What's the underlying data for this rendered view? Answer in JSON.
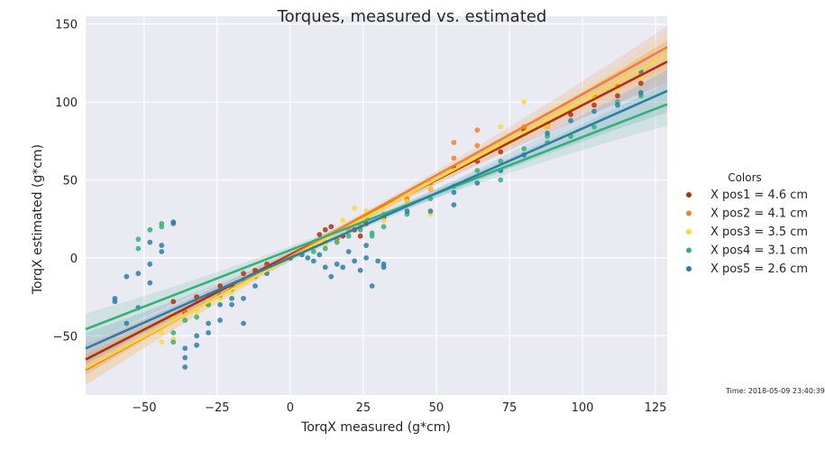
{
  "chart_data": {
    "type": "scatter",
    "title": "Torques, measured vs. estimated",
    "xlabel": "TorqX measured (g*cm)",
    "ylabel": "TorqX estimated (g*cm)",
    "xlim": [
      -70,
      129
    ],
    "ylim": [
      -88,
      155
    ],
    "xticks": [
      -50,
      -25,
      0,
      25,
      50,
      75,
      100,
      125
    ],
    "yticks": [
      -50,
      0,
      50,
      100,
      150
    ],
    "xtick_labels": [
      "−50",
      "−25",
      "0",
      "25",
      "50",
      "75",
      "100",
      "125"
    ],
    "ytick_labels": [
      "−50",
      "0",
      "50",
      "100",
      "150"
    ],
    "grid": true,
    "legend": {
      "title": "Colors",
      "placement": "right"
    },
    "timestamp": "Time: 2018-05-09 23:40:39",
    "series": [
      {
        "name": "X pos1 = 4.6 cm",
        "color": "#b3300c",
        "fit": {
          "slope": 0.96,
          "intercept": 2
        },
        "points": [
          [
            -40,
            -28
          ],
          [
            -36,
            -35
          ],
          [
            -32,
            -25
          ],
          [
            -28,
            -24
          ],
          [
            -24,
            -18
          ],
          [
            -20,
            -18
          ],
          [
            -16,
            -10
          ],
          [
            -12,
            -8
          ],
          [
            -8,
            -4
          ],
          [
            0,
            0
          ],
          [
            8,
            8
          ],
          [
            10,
            15
          ],
          [
            12,
            18
          ],
          [
            14,
            20
          ],
          [
            16,
            12
          ],
          [
            18,
            14
          ],
          [
            22,
            18
          ],
          [
            24,
            14
          ],
          [
            26,
            22
          ],
          [
            32,
            26
          ],
          [
            40,
            36
          ],
          [
            48,
            44
          ],
          [
            56,
            58
          ],
          [
            64,
            62
          ],
          [
            72,
            68
          ],
          [
            80,
            82
          ],
          [
            88,
            84
          ],
          [
            96,
            92
          ],
          [
            104,
            98
          ],
          [
            112,
            104
          ],
          [
            120,
            112
          ]
        ]
      },
      {
        "name": "X pos2 = 4.1 cm",
        "color": "#f0822a",
        "fit": {
          "slope": 1.04,
          "intercept": 1
        },
        "points": [
          [
            -40,
            -38
          ],
          [
            -36,
            -34
          ],
          [
            -32,
            -28
          ],
          [
            -28,
            -30
          ],
          [
            -24,
            -24
          ],
          [
            -20,
            -20
          ],
          [
            -16,
            -14
          ],
          [
            -12,
            -12
          ],
          [
            -8,
            -6
          ],
          [
            0,
            0
          ],
          [
            8,
            6
          ],
          [
            12,
            10
          ],
          [
            16,
            12
          ],
          [
            20,
            18
          ],
          [
            24,
            20
          ],
          [
            26,
            26
          ],
          [
            32,
            28
          ],
          [
            40,
            38
          ],
          [
            48,
            48
          ],
          [
            56,
            64
          ],
          [
            56,
            74
          ],
          [
            64,
            72
          ],
          [
            64,
            82
          ],
          [
            72,
            72
          ],
          [
            80,
            84
          ],
          [
            88,
            86
          ],
          [
            96,
            96
          ],
          [
            104,
            104
          ],
          [
            112,
            110
          ],
          [
            120,
            118
          ]
        ]
      },
      {
        "name": "X pos3 = 3.5 cm",
        "color": "#f9d93a",
        "fit": {
          "slope": 1.01,
          "intercept": 0
        },
        "points": [
          [
            -44,
            -54
          ],
          [
            -44,
            -48
          ],
          [
            -40,
            -52
          ],
          [
            -40,
            -38
          ],
          [
            -36,
            -40
          ],
          [
            -32,
            -34
          ],
          [
            -28,
            -28
          ],
          [
            -24,
            -26
          ],
          [
            -20,
            -22
          ],
          [
            -16,
            -16
          ],
          [
            -12,
            -12
          ],
          [
            0,
            0
          ],
          [
            8,
            6
          ],
          [
            12,
            8
          ],
          [
            16,
            10
          ],
          [
            18,
            24
          ],
          [
            22,
            32
          ],
          [
            26,
            30
          ],
          [
            32,
            24
          ],
          [
            40,
            36
          ],
          [
            48,
            28
          ],
          [
            48,
            44
          ],
          [
            56,
            56
          ],
          [
            64,
            64
          ],
          [
            72,
            84
          ],
          [
            80,
            100
          ],
          [
            88,
            84
          ],
          [
            96,
            96
          ],
          [
            104,
            102
          ],
          [
            112,
            108
          ],
          [
            120,
            116
          ]
        ]
      },
      {
        "name": "X pos4 = 3.1 cm",
        "color": "#35b07b",
        "fit": {
          "slope": 0.725,
          "intercept": 5
        },
        "points": [
          [
            -52,
            12
          ],
          [
            -52,
            6
          ],
          [
            -48,
            18
          ],
          [
            -44,
            22
          ],
          [
            -44,
            20
          ],
          [
            -40,
            -48
          ],
          [
            -40,
            -54
          ],
          [
            -36,
            -40
          ],
          [
            -32,
            -38
          ],
          [
            -28,
            -30
          ],
          [
            -24,
            -24
          ],
          [
            -20,
            -20
          ],
          [
            -16,
            -14
          ],
          [
            -12,
            -12
          ],
          [
            0,
            0
          ],
          [
            8,
            4
          ],
          [
            12,
            6
          ],
          [
            16,
            10
          ],
          [
            20,
            14
          ],
          [
            24,
            18
          ],
          [
            28,
            14
          ],
          [
            28,
            16
          ],
          [
            32,
            20
          ],
          [
            40,
            28
          ],
          [
            48,
            38
          ],
          [
            56,
            46
          ],
          [
            64,
            56
          ],
          [
            72,
            50
          ],
          [
            72,
            62
          ],
          [
            80,
            70
          ],
          [
            88,
            78
          ],
          [
            88,
            74
          ],
          [
            96,
            78
          ],
          [
            104,
            84
          ],
          [
            112,
            100
          ],
          [
            120,
            104
          ]
        ]
      },
      {
        "name": "X pos5 = 2.6 cm",
        "color": "#2b7fa6",
        "fit": {
          "slope": 0.83,
          "intercept": 0
        },
        "points": [
          [
            -60,
            -28
          ],
          [
            -60,
            -26
          ],
          [
            -56,
            -12
          ],
          [
            -56,
            -42
          ],
          [
            -52,
            -32
          ],
          [
            -52,
            -10
          ],
          [
            -48,
            -4
          ],
          [
            -48,
            -16
          ],
          [
            -48,
            10
          ],
          [
            -44,
            8
          ],
          [
            -44,
            4
          ],
          [
            -40,
            22
          ],
          [
            -40,
            23
          ],
          [
            -36,
            -58
          ],
          [
            -36,
            -64
          ],
          [
            -36,
            -70
          ],
          [
            -32,
            -56
          ],
          [
            -32,
            -50
          ],
          [
            -28,
            -42
          ],
          [
            -28,
            -48
          ],
          [
            -24,
            -40
          ],
          [
            -24,
            -30
          ],
          [
            -20,
            -30
          ],
          [
            -20,
            -26
          ],
          [
            -16,
            -42
          ],
          [
            -16,
            -26
          ],
          [
            -12,
            -18
          ],
          [
            -8,
            -10
          ],
          [
            0,
            0
          ],
          [
            4,
            2
          ],
          [
            6,
            0
          ],
          [
            8,
            -2
          ],
          [
            10,
            2
          ],
          [
            12,
            -6
          ],
          [
            14,
            -12
          ],
          [
            16,
            -4
          ],
          [
            18,
            -6
          ],
          [
            20,
            4
          ],
          [
            22,
            -2
          ],
          [
            24,
            -8
          ],
          [
            26,
            0
          ],
          [
            26,
            8
          ],
          [
            28,
            -18
          ],
          [
            30,
            -2
          ],
          [
            32,
            -6
          ],
          [
            32,
            -4
          ],
          [
            40,
            30
          ],
          [
            48,
            30
          ],
          [
            56,
            34
          ],
          [
            56,
            42
          ],
          [
            64,
            48
          ],
          [
            72,
            56
          ],
          [
            80,
            66
          ],
          [
            88,
            80
          ],
          [
            96,
            88
          ],
          [
            104,
            94
          ],
          [
            112,
            98
          ],
          [
            120,
            106
          ],
          [
            120,
            120
          ]
        ]
      }
    ]
  }
}
